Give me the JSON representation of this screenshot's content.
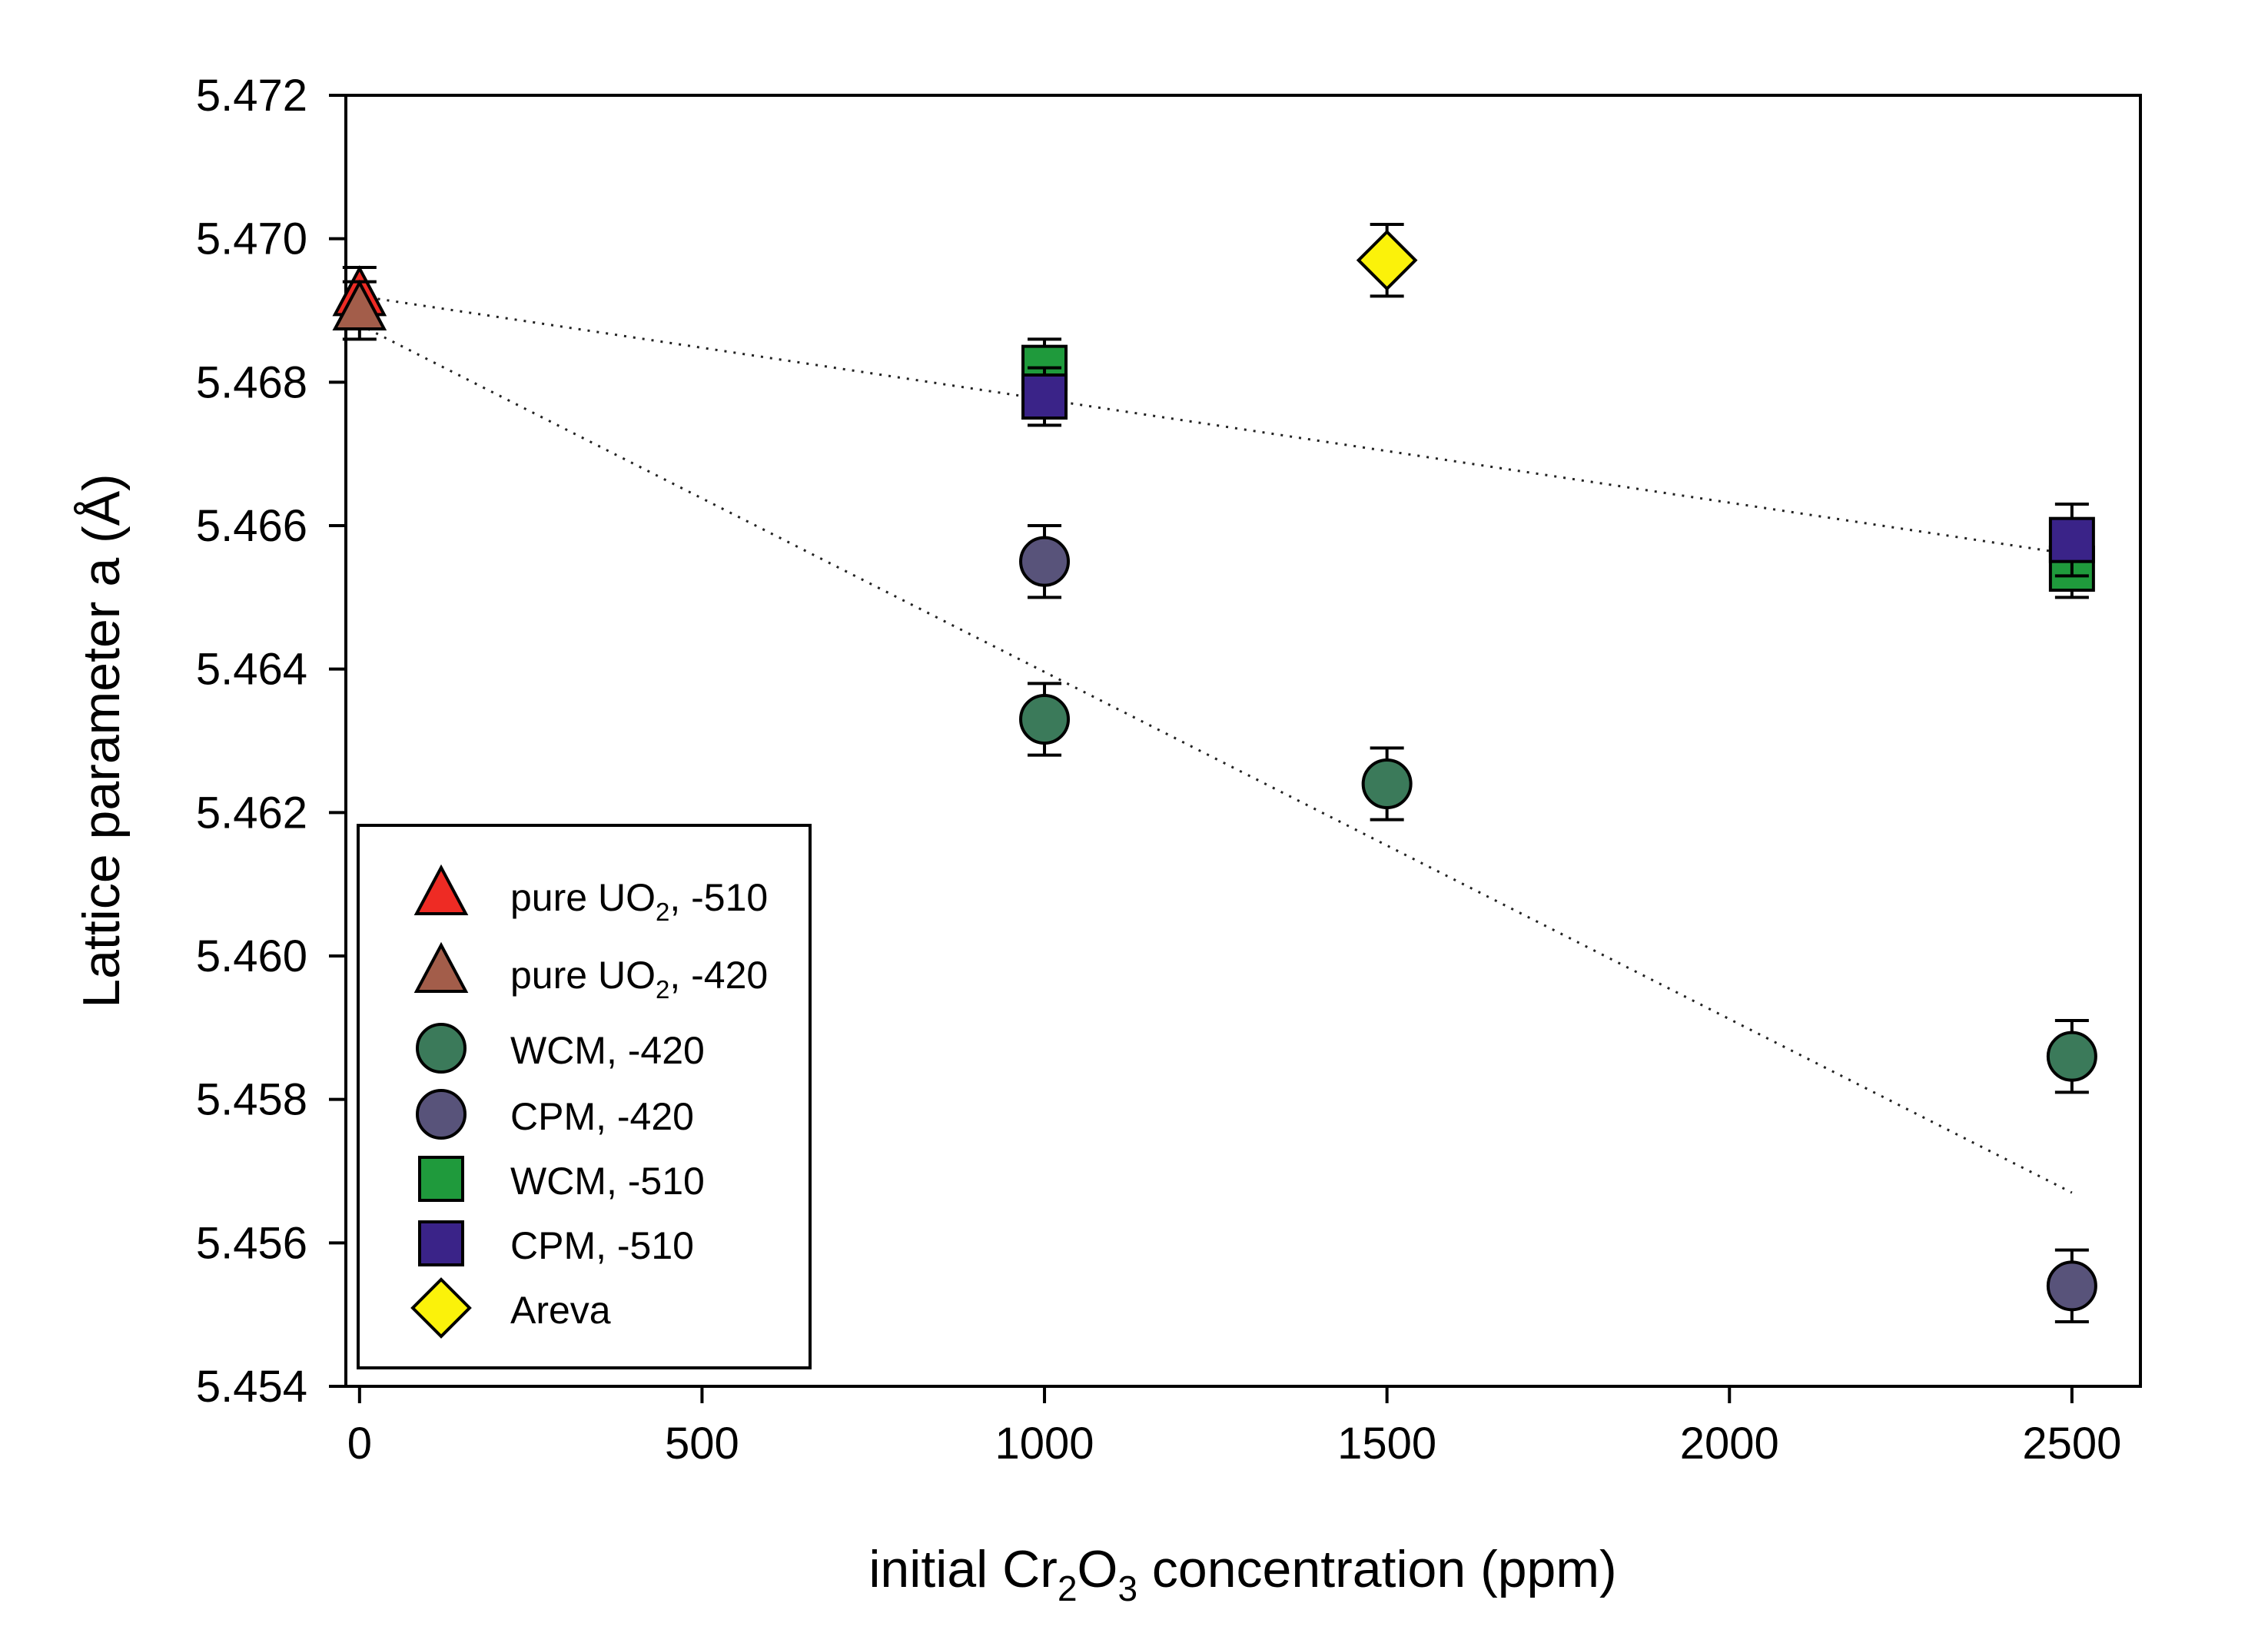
{
  "chart_data": {
    "type": "scatter",
    "title": "",
    "xlabel_parts": [
      "initial Cr",
      "2",
      "O",
      "3",
      " concentration (ppm)"
    ],
    "ylabel": "Lattice parameter a (Å)",
    "xlim": [
      -20,
      2600
    ],
    "ylim": [
      5.454,
      5.472
    ],
    "x_ticks": [
      0,
      500,
      1000,
      1500,
      2000,
      2500
    ],
    "y_ticks": [
      5.454,
      5.456,
      5.458,
      5.46,
      5.462,
      5.464,
      5.466,
      5.468,
      5.47,
      5.472
    ],
    "y_tick_decimals": 3,
    "grid": false,
    "legend_position": "bottom-left",
    "series": [
      {
        "name": "pure UO2, -510",
        "legend_parts": [
          "pure UO",
          "2",
          ", -510"
        ],
        "marker": "triangle",
        "color": "#ee2b24",
        "points": [
          {
            "x": 0,
            "y": 5.4692,
            "err": 0.0004
          }
        ]
      },
      {
        "name": "pure UO2, -420",
        "legend_parts": [
          "pure UO",
          "2",
          ", -420"
        ],
        "marker": "triangle",
        "color": "#a35d4a",
        "points": [
          {
            "x": 0,
            "y": 5.469,
            "err": 0.0004
          }
        ]
      },
      {
        "name": "WCM, -420",
        "legend_parts": [
          "WCM, -420"
        ],
        "marker": "circle",
        "color": "#3b7a5a",
        "points": [
          {
            "x": 1000,
            "y": 5.4633,
            "err": 0.0005
          },
          {
            "x": 1500,
            "y": 5.4624,
            "err": 0.0005
          },
          {
            "x": 2500,
            "y": 5.4586,
            "err": 0.0005
          }
        ]
      },
      {
        "name": "CPM, -420",
        "legend_parts": [
          "CPM, -420"
        ],
        "marker": "circle",
        "color": "#58537a",
        "points": [
          {
            "x": 1000,
            "y": 5.4655,
            "err": 0.0005
          },
          {
            "x": 2500,
            "y": 5.4554,
            "err": 0.0005
          }
        ]
      },
      {
        "name": "WCM, -510",
        "legend_parts": [
          "WCM, -510"
        ],
        "marker": "square",
        "color": "#1f9a3c",
        "points": [
          {
            "x": 1000,
            "y": 5.4682,
            "err": 0.0004
          },
          {
            "x": 2500,
            "y": 5.4654,
            "err": 0.0004
          }
        ]
      },
      {
        "name": "CPM, -510",
        "legend_parts": [
          "CPM, -510"
        ],
        "marker": "square",
        "color": "#3a2388",
        "points": [
          {
            "x": 1000,
            "y": 5.4678,
            "err": 0.0004
          },
          {
            "x": 2500,
            "y": 5.4658,
            "err": 0.0005
          }
        ]
      },
      {
        "name": "Areva",
        "legend_parts": [
          "Areva"
        ],
        "marker": "diamond",
        "color": "#fbf20a",
        "points": [
          {
            "x": 1500,
            "y": 5.4697,
            "err": 0.0005
          }
        ]
      }
    ],
    "trend_lines": [
      {
        "from": [
          0,
          5.4692
        ],
        "to": [
          2500,
          5.4656
        ]
      },
      {
        "from": [
          0,
          5.4688
        ],
        "to": [
          2500,
          5.4567
        ]
      }
    ]
  }
}
